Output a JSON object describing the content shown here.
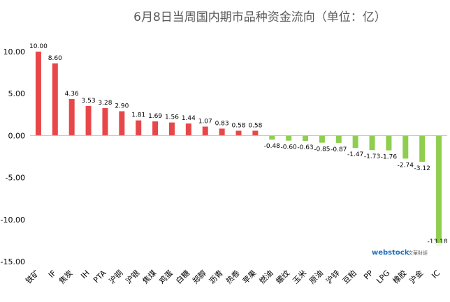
{
  "chart_data": {
    "type": "bar",
    "title": "6月8日当周国内期市品种资金流向（单位：亿）",
    "categories": [
      "铁矿",
      "IF",
      "焦炭",
      "IH",
      "PTA",
      "沪铜",
      "沪银",
      "焦煤",
      "鸡蛋",
      "白糖",
      "郑醇",
      "沥青",
      "热卷",
      "苹果",
      "燃油",
      "螺纹",
      "玉米",
      "原油",
      "沪锌",
      "豆粕",
      "PP",
      "LPG",
      "橡胶",
      "沪金",
      "IC"
    ],
    "values": [
      10.0,
      8.6,
      4.36,
      3.53,
      3.28,
      2.9,
      1.81,
      1.69,
      1.56,
      1.44,
      1.07,
      0.83,
      0.58,
      0.58,
      -0.48,
      -0.6,
      -0.63,
      -0.85,
      -0.87,
      -1.47,
      -1.73,
      -1.76,
      -2.74,
      -3.12,
      -13.18
    ],
    "data_labels": [
      "10.00",
      "8.60",
      "4.36",
      "3.53",
      "3.28",
      "2.90",
      "1.81",
      "1.69",
      "1.56",
      "1.44",
      "1.07",
      "0.83",
      "0.58",
      "0.58",
      "-0.48",
      "-0.60",
      "-0.63",
      "-0.85",
      "-0.87",
      "-1.47",
      "-1.73",
      "-1.76",
      "-2.74",
      "-3.12",
      "-13.18"
    ],
    "yticks": [
      "10.00",
      "5.00",
      "0.00",
      "-5.00",
      "-10.00",
      "-15.00"
    ],
    "ylim": [
      -15,
      10
    ],
    "grid": false,
    "legend": "none",
    "colors": {
      "positive": "#e8474a",
      "negative": "#8fce4f",
      "axis": "#bfbfbf"
    }
  },
  "watermark": {
    "brand": "webstock",
    "sub": "文華財經"
  }
}
